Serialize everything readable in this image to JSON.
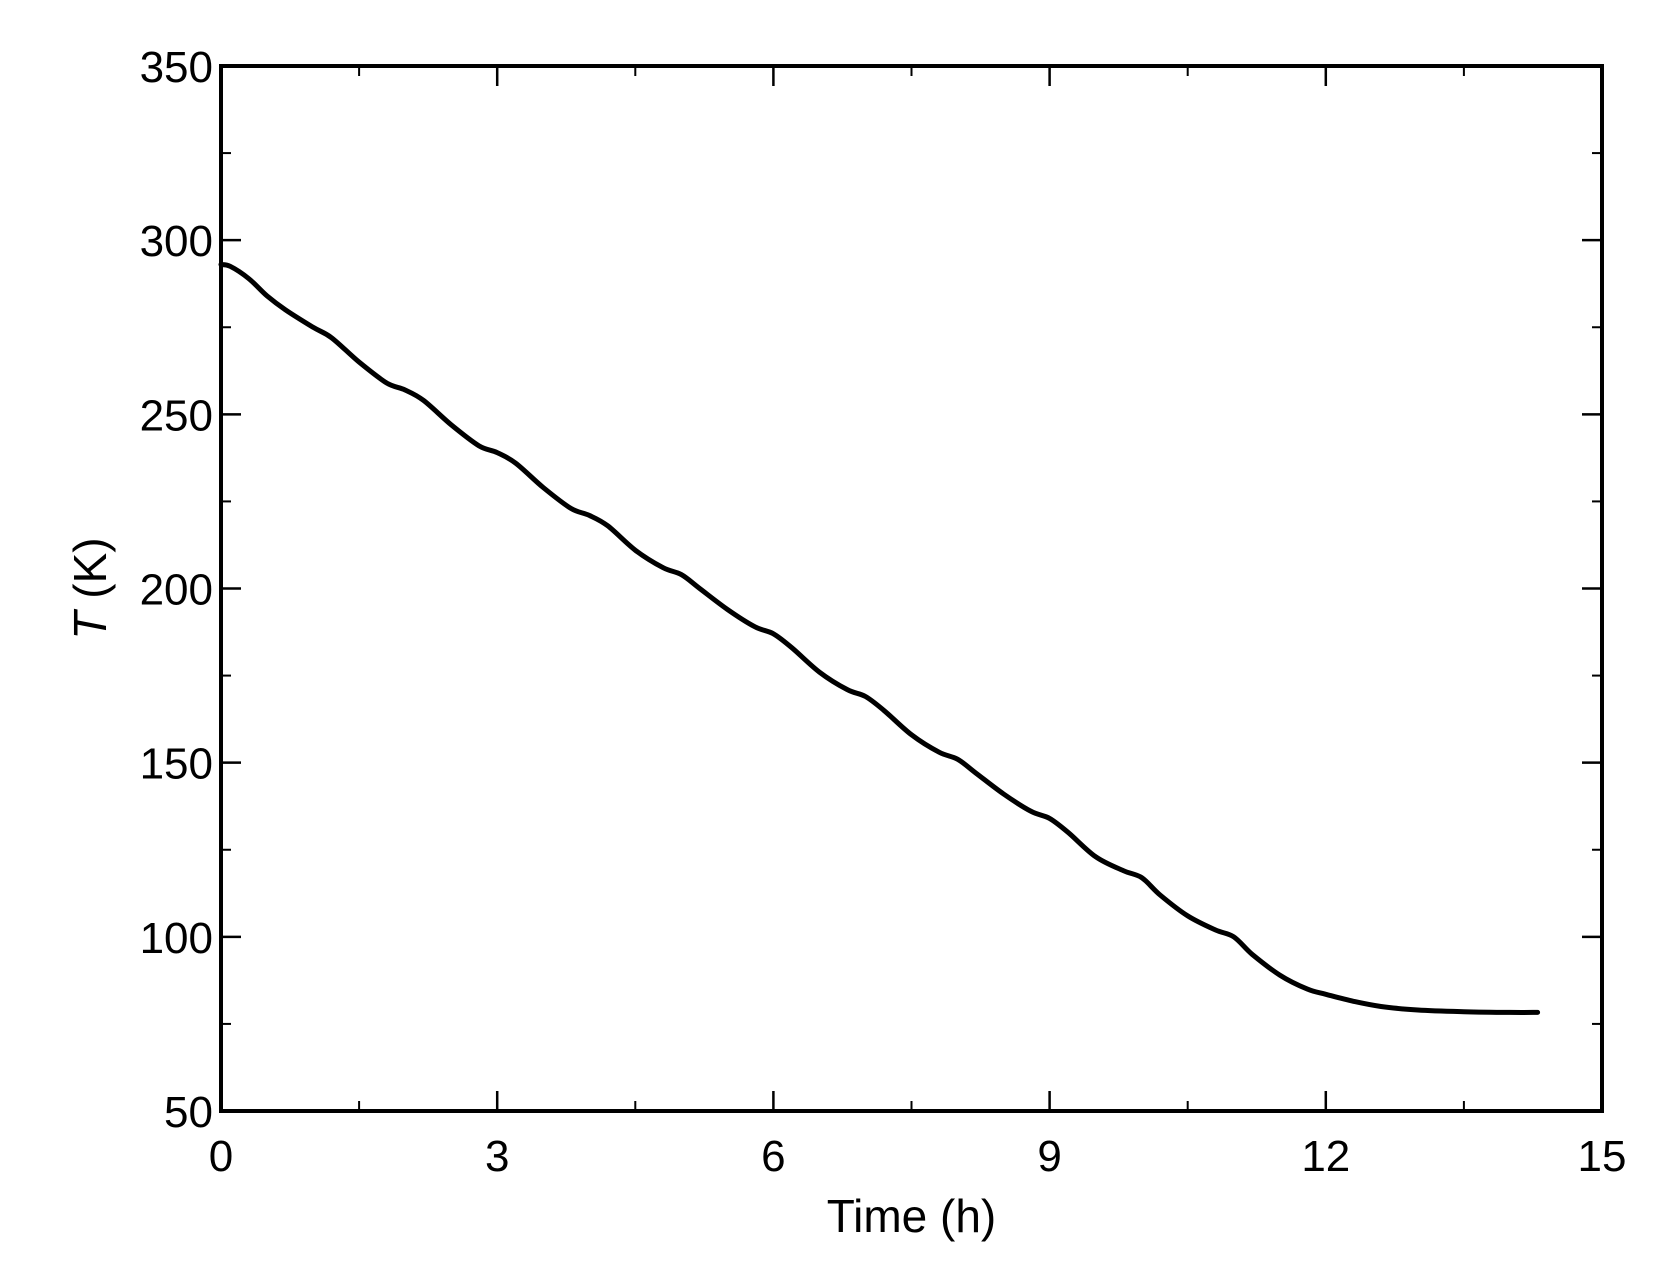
{
  "chart_data": {
    "type": "line",
    "title": "",
    "xlabel": "Time (h)",
    "ylabel_symbol": "T",
    "ylabel_unit": " (K)",
    "xlim": [
      0,
      15
    ],
    "ylim": [
      50,
      350
    ],
    "x_major_ticks": [
      0,
      3,
      6,
      9,
      12,
      15
    ],
    "x_minor_step": 1.5,
    "y_major_ticks": [
      50,
      100,
      150,
      200,
      250,
      300,
      350
    ],
    "y_minor_step": 25,
    "grid": false,
    "legend": "none",
    "line_color": "#000000",
    "series": [
      {
        "x": [
          0,
          0.1,
          0.3,
          0.5,
          0.7,
          1.0,
          1.2,
          1.5,
          1.8,
          2.0,
          2.2,
          2.5,
          2.8,
          3.0,
          3.2,
          3.5,
          3.8,
          4.0,
          4.2,
          4.5,
          4.8,
          5.0,
          5.2,
          5.5,
          5.8,
          6.0,
          6.2,
          6.5,
          6.8,
          7.0,
          7.2,
          7.5,
          7.8,
          8.0,
          8.2,
          8.5,
          8.8,
          9.0,
          9.2,
          9.5,
          9.8,
          10.0,
          10.2,
          10.5,
          10.8,
          11.0,
          11.2,
          11.5,
          11.8,
          12.0,
          12.3,
          12.6,
          13.0,
          13.5,
          14.0,
          14.3
        ],
        "y": [
          293,
          292.5,
          289,
          284,
          280,
          275,
          272,
          265,
          259,
          257,
          254,
          247,
          241,
          239,
          236,
          229,
          223,
          221,
          218,
          211,
          206,
          204,
          200,
          194,
          189,
          187,
          183,
          176,
          171,
          169,
          165,
          158,
          153,
          151,
          147,
          141,
          136,
          134,
          130,
          123,
          119,
          117,
          112,
          106,
          102,
          100,
          95,
          89,
          85,
          83.5,
          81.5,
          80,
          79,
          78.5,
          78.3,
          78.3
        ]
      }
    ]
  }
}
